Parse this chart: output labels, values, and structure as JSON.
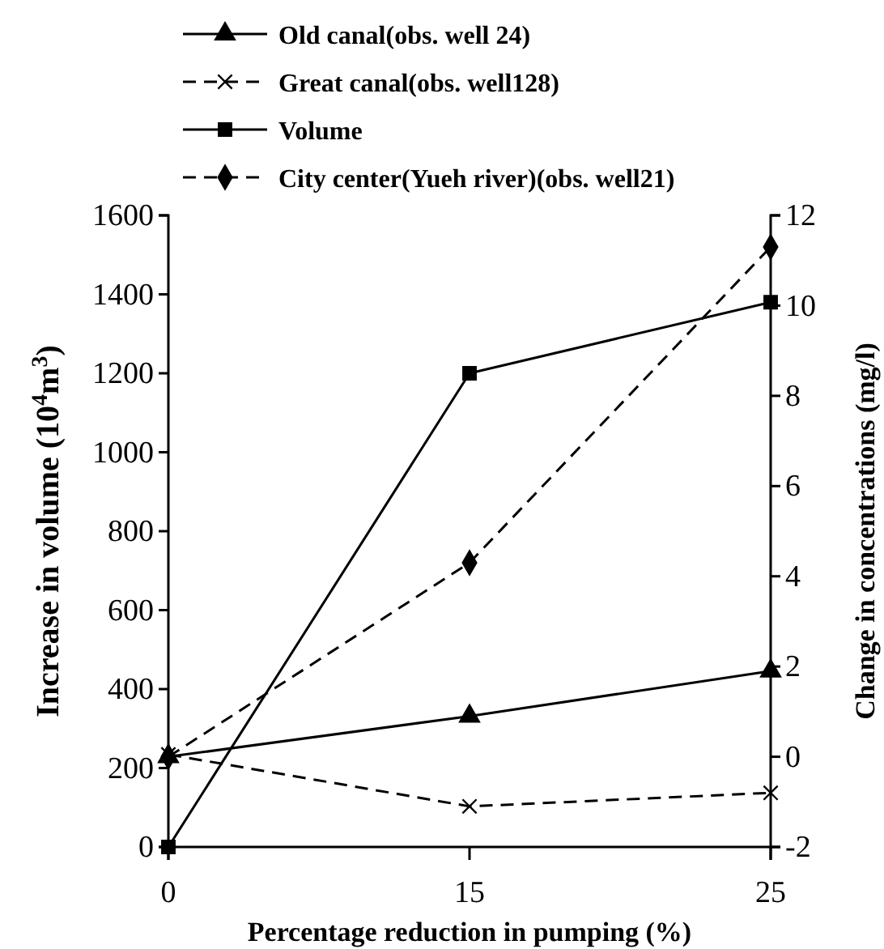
{
  "chart_data": {
    "type": "line",
    "categories": [
      "0",
      "15",
      "25"
    ],
    "xlabel": "Percentage reduction in pumping (%)",
    "ylabel": "Increase in volume (10$^{4}$m$^{3}$)",
    "y2label": "Change in concentrations (mg/l)",
    "ylim": [
      0,
      1600
    ],
    "yticks": [
      0,
      200,
      400,
      600,
      800,
      1000,
      1200,
      1400,
      1600
    ],
    "y2lim": [
      -2,
      12
    ],
    "y2ticks": [
      -2,
      0,
      2,
      4,
      6,
      8,
      10,
      12
    ],
    "legend": "top",
    "grid": false,
    "series": [
      {
        "name": "Old canal(obs. well 24)",
        "color": "#000000",
        "axis": "y2",
        "marker": "triangle",
        "line_style": "solid",
        "values": [
          0,
          0.9,
          1.9
        ]
      },
      {
        "name": "Great canal(obs. well128)",
        "color": "#000000",
        "axis": "y2",
        "marker": "cross",
        "line_style": "dashed",
        "values": [
          0.05,
          -1.1,
          -0.8
        ]
      },
      {
        "name": "Volume",
        "color": "#000000",
        "marker": "square",
        "line_style": "solid",
        "values": [
          0,
          1200,
          1380
        ]
      },
      {
        "name": "City center(Yueh river)(obs. well21)",
        "color": "#000000",
        "axis": "y2",
        "marker": "diamond",
        "line_style": "dashed",
        "values": [
          0,
          4.3,
          11.3
        ]
      }
    ]
  }
}
